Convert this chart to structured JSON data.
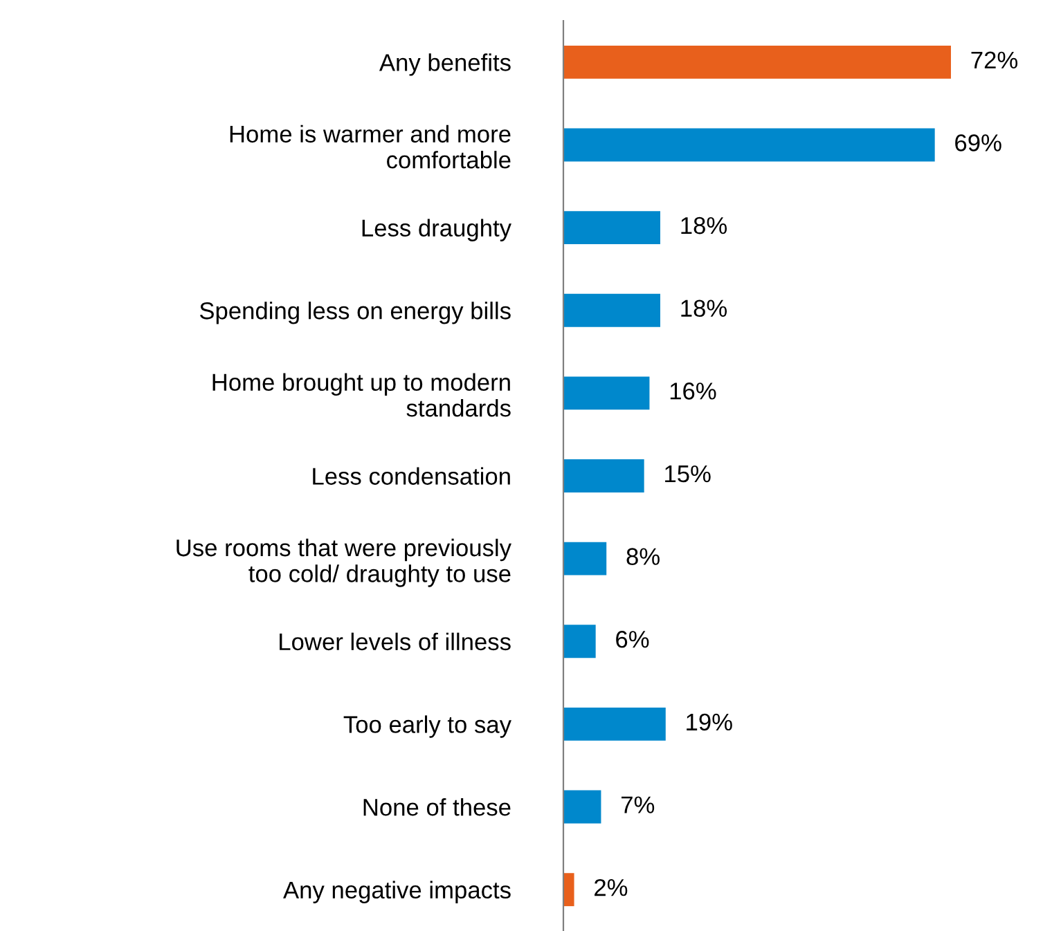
{
  "chart_data": {
    "type": "bar",
    "orientation": "horizontal",
    "categories": [
      "Any benefits",
      "Home is warmer and more\ncomfortable",
      "Less draughty",
      "Spending less on energy bills",
      "Home brought up to modern\nstandards",
      "Less condensation",
      "Use rooms that were previously\ntoo cold/ draughty to use",
      "Lower levels of illness",
      "Too early to say",
      "None of these",
      "Any negative impacts"
    ],
    "values": [
      72,
      69,
      18,
      18,
      16,
      15,
      8,
      6,
      19,
      7,
      2
    ],
    "colors": [
      "#e8601c",
      "#0088cc",
      "#0088cc",
      "#0088cc",
      "#0088cc",
      "#0088cc",
      "#0088cc",
      "#0088cc",
      "#0088cc",
      "#0088cc",
      "#e8601c"
    ],
    "value_labels": [
      "72%",
      "69%",
      "18%",
      "18%",
      "16%",
      "15%",
      "8%",
      "6%",
      "19%",
      "7%",
      "2%"
    ],
    "grid": false,
    "legend": false
  }
}
